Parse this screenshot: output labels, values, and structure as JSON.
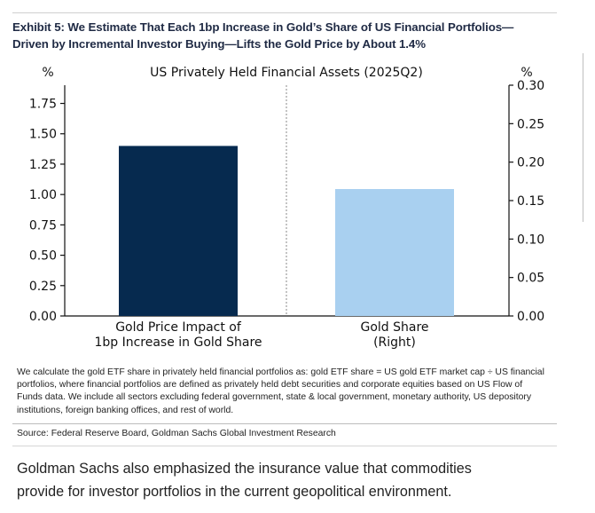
{
  "exhibit": {
    "title_line1": "Exhibit 5: We Estimate That Each 1bp Increase in Gold’s Share of US Financial Portfolios—",
    "title_line2": "Driven by Incremental Investor Buying—Lifts the Gold Price by About 1.4%",
    "notes_line1": "We calculate the gold ETF share in privately held financial portfolios as: gold ETF share = US gold ETF market cap ÷ US financial",
    "notes_line2": "portfolios, where financial portfolios are defined as privately held debt securities and corporate equities based on US Flow of",
    "notes_line3": "Funds data. We include all sectors excluding federal government, state & local government, monetary authority, US depository",
    "notes_line4": "institutions, foreign banking offices, and rest of world.",
    "source": "Source: Federal Reserve Board, Goldman Sachs Global Investment Research"
  },
  "article": {
    "line1": "Goldman Sachs also emphasized the insurance value that commodities",
    "line2": "provide for investor portfolios in the current geopolitical environment."
  },
  "chart_data": {
    "type": "bar",
    "title": "US Privately Held Financial Assets (2025Q2)",
    "left_axis": {
      "unit_label": "%",
      "ylim": [
        0,
        1.9
      ],
      "ticks": [
        "0.00",
        "0.25",
        "0.50",
        "0.75",
        "1.00",
        "1.25",
        "1.50",
        "1.75"
      ]
    },
    "right_axis": {
      "unit_label": "%",
      "ylim": [
        0,
        0.3
      ],
      "ticks": [
        "0.00",
        "0.05",
        "0.10",
        "0.15",
        "0.20",
        "0.25",
        "0.30"
      ]
    },
    "bars": [
      {
        "label_line1": "Gold Price Impact of",
        "label_line2": "1bp Increase in Gold Share",
        "value": 1.4,
        "axis": "left",
        "color": "#062a4f"
      },
      {
        "label_line1": "Gold Share",
        "label_line2": "(Right)",
        "value": 0.165,
        "axis": "right",
        "color": "#a9d0f0"
      }
    ],
    "divider": "dashed vertical line between bars",
    "grid": false
  }
}
